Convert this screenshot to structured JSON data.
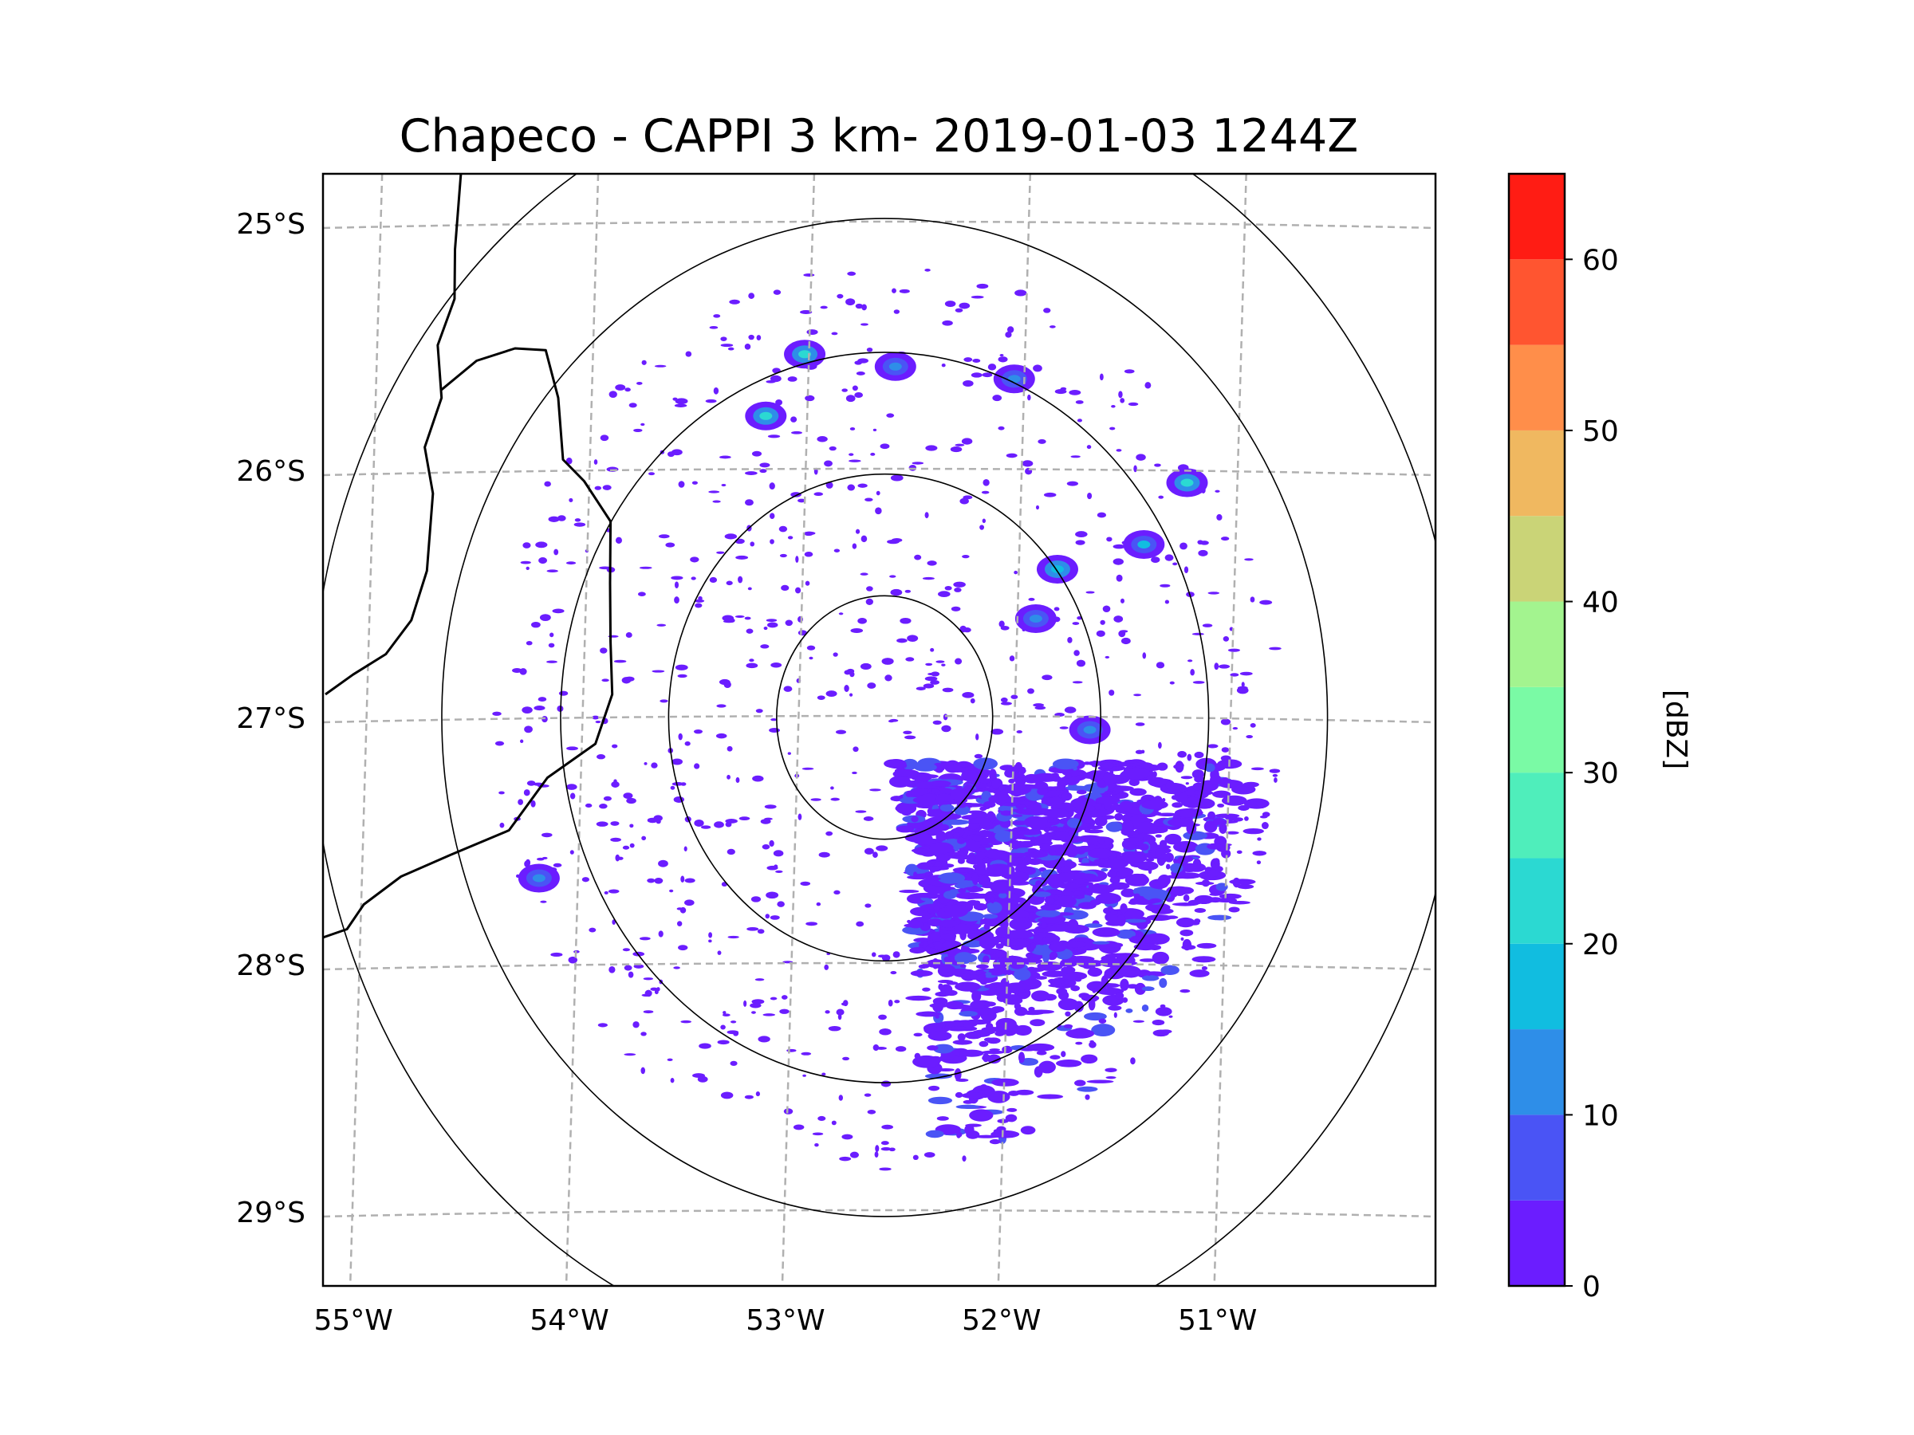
{
  "title": "Chapeco - CAPPI 3 km- 2019-01-03 1244Z",
  "map": {
    "lon_range": [
      -55.2,
      -50.05
    ],
    "lat_range": [
      -29.3,
      -24.8
    ],
    "lon_ticks": [
      {
        "value": -55,
        "label": "55°W"
      },
      {
        "value": -54,
        "label": "54°W"
      },
      {
        "value": -53,
        "label": "53°W"
      },
      {
        "value": -52,
        "label": "52°W"
      },
      {
        "value": -51,
        "label": "51°W"
      }
    ],
    "lat_ticks": [
      {
        "value": -25,
        "label": "25°S"
      },
      {
        "value": -26,
        "label": "26°S"
      },
      {
        "value": -27,
        "label": "27°S"
      },
      {
        "value": -28,
        "label": "28°S"
      },
      {
        "value": -29,
        "label": "29°S"
      }
    ],
    "radar_center": {
      "lon": -52.6,
      "lat": -27.0
    },
    "range_rings_deg": [
      0.5,
      1.0,
      1.5,
      2.05,
      2.65
    ],
    "coverage_radius_deg": 1.83,
    "border_lines": [
      [
        [
          -54.55,
          -24.8
        ],
        [
          -54.6,
          -25.1
        ],
        [
          -54.58,
          -25.3
        ],
        [
          -54.68,
          -25.5
        ],
        [
          -54.64,
          -25.7
        ],
        [
          -54.74,
          -25.9
        ],
        [
          -54.68,
          -26.1
        ],
        [
          -54.73,
          -26.4
        ],
        [
          -54.78,
          -26.6
        ],
        [
          -54.92,
          -26.75
        ],
        [
          -55.05,
          -26.82
        ],
        [
          -55.2,
          -26.9
        ]
      ],
      [
        [
          -54.64,
          -25.68
        ],
        [
          -54.5,
          -25.55
        ],
        [
          -54.3,
          -25.5
        ],
        [
          -54.18,
          -25.52
        ],
        [
          -54.1,
          -25.7
        ],
        [
          -54.1,
          -25.95
        ],
        [
          -53.98,
          -26.05
        ],
        [
          -53.88,
          -26.2
        ],
        [
          -53.86,
          -26.45
        ],
        [
          -53.88,
          -26.7
        ],
        [
          -53.85,
          -26.9
        ],
        [
          -53.95,
          -27.1
        ],
        [
          -54.15,
          -27.25
        ],
        [
          -54.35,
          -27.45
        ],
        [
          -54.6,
          -27.55
        ],
        [
          -54.85,
          -27.65
        ],
        [
          -55.0,
          -27.75
        ],
        [
          -55.1,
          -27.85
        ],
        [
          -55.2,
          -27.9
        ]
      ]
    ],
    "storm_cells": [
      {
        "lon": -52.97,
        "lat": -25.53,
        "dbz": 24
      },
      {
        "lon": -53.15,
        "lat": -25.78,
        "dbz": 22
      },
      {
        "lon": -52.55,
        "lat": -25.58,
        "dbz": 12
      },
      {
        "lon": -52.0,
        "lat": -25.63,
        "dbz": 14
      },
      {
        "lon": -51.2,
        "lat": -26.05,
        "dbz": 22
      },
      {
        "lon": -51.4,
        "lat": -26.3,
        "dbz": 15
      },
      {
        "lon": -51.8,
        "lat": -26.4,
        "dbz": 18
      },
      {
        "lon": -51.9,
        "lat": -26.6,
        "dbz": 14
      },
      {
        "lon": -54.2,
        "lat": -27.65,
        "dbz": 12
      },
      {
        "lon": -51.65,
        "lat": -27.05,
        "dbz": 14
      }
    ]
  },
  "colorbar": {
    "label": "[dBZ]",
    "bounds": [
      0,
      65
    ],
    "tick_values": [
      0,
      10,
      20,
      30,
      40,
      50,
      60
    ],
    "tick_labels": [
      "0",
      "10",
      "20",
      "30",
      "40",
      "50",
      "60"
    ],
    "colors": [
      "#6b1dff",
      "#4a54f5",
      "#2e8ee8",
      "#11bde0",
      "#2bd9d2",
      "#4feebb",
      "#7afaa5",
      "#a3f48f",
      "#cad477",
      "#f0b860",
      "#ff8e4a",
      "#ff5530",
      "#ff1c14"
    ]
  }
}
